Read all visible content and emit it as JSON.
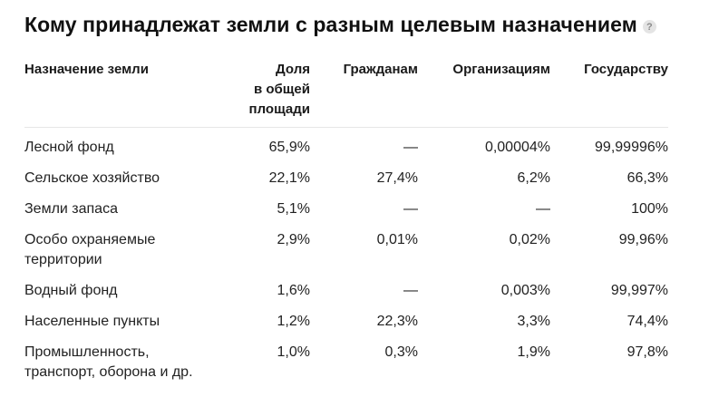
{
  "title": "Кому принадлежат земли с разным целевым назначением",
  "help_icon": "question-mark-icon",
  "table": {
    "headers": {
      "purpose": "Назначение земли",
      "share_line1": "Доля",
      "share_line2": "в общей",
      "share_line3": "площади",
      "citizens": "Гражданам",
      "organizations": "Организациям",
      "state": "Государству"
    },
    "rows": [
      {
        "purpose_line1": "Лесной фонд",
        "purpose_line2": "",
        "share": "65,9%",
        "citizens": "—",
        "organizations": "0,00004%",
        "state": "99,99996%"
      },
      {
        "purpose_line1": "Сельское хозяйство",
        "purpose_line2": "",
        "share": "22,1%",
        "citizens": "27,4%",
        "organizations": "6,2%",
        "state": "66,3%"
      },
      {
        "purpose_line1": "Земли запаса",
        "purpose_line2": "",
        "share": "5,1%",
        "citizens": "—",
        "organizations": "—",
        "state": "100%"
      },
      {
        "purpose_line1": "Особо охраняемые",
        "purpose_line2": "территории",
        "share": "2,9%",
        "citizens": "0,01%",
        "organizations": "0,02%",
        "state": "99,96%"
      },
      {
        "purpose_line1": "Водный фонд",
        "purpose_line2": "",
        "share": "1,6%",
        "citizens": "—",
        "organizations": "0,003%",
        "state": "99,997%"
      },
      {
        "purpose_line1": "Населенные пункты",
        "purpose_line2": "",
        "share": "1,2%",
        "citizens": "22,3%",
        "organizations": "3,3%",
        "state": "74,4%"
      },
      {
        "purpose_line1": "Промышленность,",
        "purpose_line2": "транспорт, оборона и др.",
        "share": "1,0%",
        "citizens": "0,3%",
        "organizations": "1,9%",
        "state": "97,8%"
      }
    ]
  }
}
